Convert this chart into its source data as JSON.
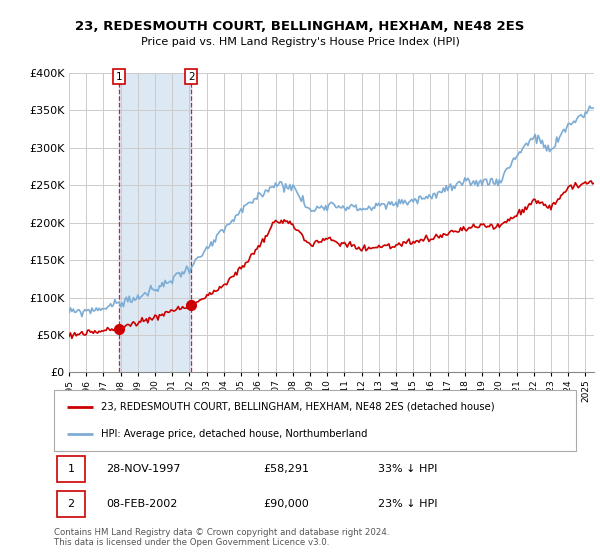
{
  "title1": "23, REDESMOUTH COURT, BELLINGHAM, HEXHAM, NE48 2ES",
  "title2": "Price paid vs. HM Land Registry's House Price Index (HPI)",
  "sale1_label": "28-NOV-1997",
  "sale1_price": 58291,
  "sale1_hpi_pct": "33% ↓ HPI",
  "sale2_label": "08-FEB-2002",
  "sale2_price": 90000,
  "sale2_hpi_pct": "23% ↓ HPI",
  "legend1": "23, REDESMOUTH COURT, BELLINGHAM, HEXHAM, NE48 2ES (detached house)",
  "legend2": "HPI: Average price, detached house, Northumberland",
  "footnote": "Contains HM Land Registry data © Crown copyright and database right 2024.\nThis data is licensed under the Open Government Licence v3.0.",
  "sale_color": "#cc0000",
  "hpi_color": "#7dadd4",
  "shade_color": "#dce9f5",
  "vline_color": "#cc0000",
  "background_color": "#ffffff",
  "grid_color": "#cccccc",
  "ylim": [
    0,
    400000
  ],
  "xlim_start": 1995.0,
  "xlim_end": 2025.5,
  "hpi_control_years": [
    1995,
    1996,
    1997,
    1998,
    1999,
    2000,
    2001,
    2002,
    2003,
    2004,
    2005,
    2006,
    2007,
    2008,
    2009,
    2010,
    2011,
    2012,
    2013,
    2014,
    2015,
    2016,
    2017,
    2018,
    2019,
    2020,
    2021,
    2022,
    2023,
    2024,
    2025.5
  ],
  "hpi_control_vals": [
    80000,
    82000,
    86000,
    93000,
    100000,
    110000,
    125000,
    140000,
    163000,
    190000,
    215000,
    235000,
    252000,
    248000,
    215000,
    225000,
    222000,
    218000,
    222000,
    225000,
    230000,
    235000,
    245000,
    252000,
    255000,
    255000,
    290000,
    315000,
    295000,
    330000,
    355000
  ],
  "prop_control_years": [
    1995,
    1996,
    1997.9,
    2002.1,
    2004,
    2005,
    2006,
    2007,
    2008,
    2009,
    2010,
    2011,
    2012,
    2013,
    2014,
    2015,
    2016,
    2017,
    2018,
    2019,
    2020,
    2021,
    2022,
    2023,
    2024,
    2025.5
  ],
  "prop_control_vals": [
    50000,
    52000,
    58291,
    90000,
    115000,
    140000,
    165000,
    203000,
    198000,
    170000,
    178000,
    172000,
    165000,
    168000,
    170000,
    173000,
    178000,
    185000,
    192000,
    195000,
    195000,
    210000,
    230000,
    220000,
    248000,
    252000
  ]
}
